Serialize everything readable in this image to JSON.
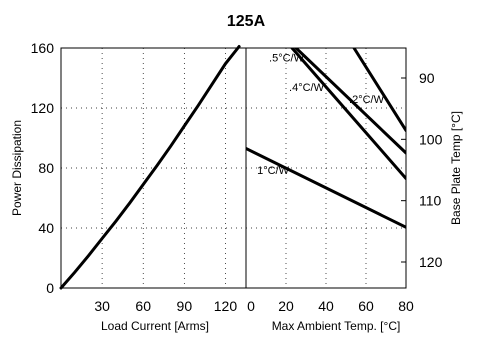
{
  "chart_data": {
    "title": "125A",
    "left_panel": {
      "type": "line",
      "xlabel": "Load Current  [Arms]",
      "ylabel": "Power Dissipation",
      "xlim": [
        0,
        135
      ],
      "ylim": [
        0,
        160
      ],
      "x_ticks": [
        30,
        60,
        90,
        120
      ],
      "y_ticks": [
        0,
        40,
        80,
        120,
        160
      ],
      "series": [
        {
          "x": [
            0,
            10,
            20,
            30,
            40,
            50,
            60,
            70,
            80,
            90,
            100,
            110,
            120,
            130
          ],
          "y": [
            0,
            10.5,
            21.5,
            33,
            44.5,
            56.5,
            69,
            81.5,
            94.5,
            108,
            121.5,
            135.5,
            149.5,
            161
          ]
        }
      ]
    },
    "right_panel": {
      "type": "line",
      "xlabel": "Max Ambient Temp. [°C]",
      "ylabel": "Base Plate Temp [°C]",
      "xlim": [
        0,
        80
      ],
      "x_ticks": [
        0,
        20,
        40,
        60,
        80
      ],
      "base_plate_ticks": [
        90,
        100,
        110,
        120
      ],
      "series": [
        {
          "name": "1°C/W",
          "x": [
            0,
            80
          ],
          "y": [
            93,
            40.5
          ]
        },
        {
          "name": ".5°C/W",
          "x": [
            25,
            80
          ],
          "y": [
            160,
            90
          ]
        },
        {
          "name": ".4°C/W",
          "x": [
            23,
            80
          ],
          "y": [
            160,
            73
          ]
        },
        {
          "name": ".2°C/W",
          "x": [
            54,
            80
          ],
          "y": [
            160,
            105
          ]
        }
      ]
    }
  }
}
